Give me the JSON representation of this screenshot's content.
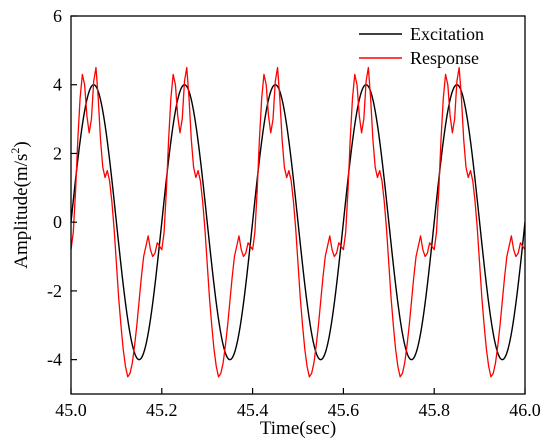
{
  "chart_data": {
    "type": "line",
    "title": "",
    "xlabel": "Time(sec)",
    "ylabel_main": "Amplitude(m/s",
    "ylabel_sup": "2",
    "ylabel_close": ")",
    "xlim": [
      45.0,
      46.0
    ],
    "ylim": [
      -5,
      6
    ],
    "x_ticks": [
      45.0,
      45.2,
      45.4,
      45.6,
      45.8,
      46.0
    ],
    "x_tick_labels": [
      "45.0",
      "45.2",
      "45.4",
      "45.6",
      "45.8",
      "46.0"
    ],
    "y_ticks": [
      -4,
      -2,
      0,
      2,
      4,
      6
    ],
    "y_tick_labels": [
      "-4",
      "-2",
      "0",
      "2",
      "4",
      "6"
    ],
    "grid": false,
    "legend_position": "top-right",
    "series": [
      {
        "name": "Excitation",
        "color": "#000000",
        "form": "sine",
        "amplitude": 4.0,
        "frequency_hz": 5.0,
        "peak_times": [
          45.05,
          45.25,
          45.45,
          45.65,
          45.85
        ]
      },
      {
        "name": "Response",
        "color": "#ff0000",
        "form": "distorted periodic",
        "period_s": 0.2,
        "x": [
          0.0,
          0.005,
          0.01,
          0.015,
          0.02,
          0.025,
          0.03,
          0.035,
          0.04,
          0.045,
          0.05,
          0.055,
          0.06,
          0.065,
          0.07,
          0.075,
          0.08,
          0.085,
          0.09,
          0.095,
          0.1,
          0.105,
          0.11,
          0.115,
          0.12,
          0.125,
          0.13,
          0.135,
          0.14,
          0.145,
          0.15,
          0.155,
          0.16,
          0.165,
          0.17,
          0.175,
          0.18,
          0.185,
          0.19,
          0.195,
          0.2
        ],
        "y": [
          -0.8,
          -0.3,
          0.9,
          2.4,
          3.6,
          4.3,
          4.0,
          3.1,
          2.6,
          3.0,
          4.1,
          4.5,
          3.6,
          2.4,
          1.6,
          1.3,
          1.5,
          1.2,
          0.6,
          -0.2,
          -1.2,
          -2.2,
          -3.0,
          -3.7,
          -4.2,
          -4.5,
          -4.4,
          -4.1,
          -3.6,
          -3.0,
          -2.3,
          -1.6,
          -1.0,
          -0.7,
          -0.4,
          -0.8,
          -1.0,
          -0.9,
          -0.6,
          -0.7,
          -0.8
        ]
      }
    ]
  }
}
